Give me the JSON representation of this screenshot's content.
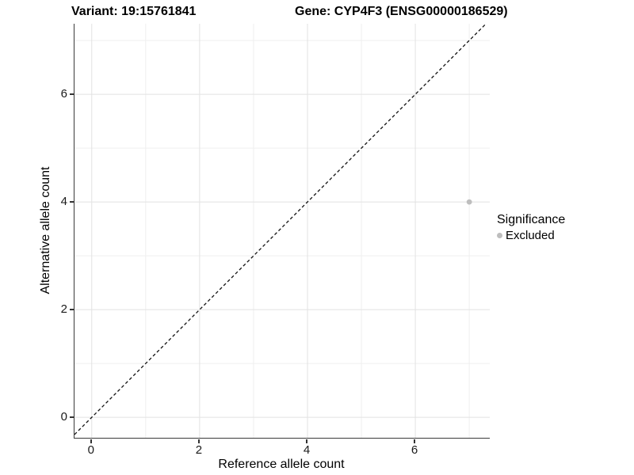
{
  "chart_data": {
    "type": "scatter",
    "title_left": "Variant: 19:15761841",
    "title_right": "Gene: CYP4F3 (ENSG00000186529)",
    "xlabel": "Reference allele count",
    "ylabel": "Alternative allele count",
    "xlim": [
      -0.32,
      7.38
    ],
    "ylim": [
      -0.38,
      7.31
    ],
    "x_major_ticks": [
      0,
      2,
      4,
      6
    ],
    "y_major_ticks": [
      0,
      2,
      4,
      6
    ],
    "x_minor_ticks": [
      1,
      3,
      5,
      7
    ],
    "y_minor_ticks": [
      1,
      3,
      5,
      7
    ],
    "grid": "major+minor",
    "legend_position": "right",
    "legend_title": "Significance",
    "series": [
      {
        "name": "Excluded",
        "color": "#bebebe",
        "points": [
          {
            "x": 7,
            "y": 4
          }
        ]
      }
    ],
    "reference_line": {
      "kind": "identity y=x",
      "style": "dashed",
      "color": "#111111"
    }
  },
  "colors": {
    "background": "#ffffff",
    "grid_major": "#e2e2e2",
    "grid_minor": "#efefef",
    "axis_line": "#3a3a3a",
    "tick_text": "#1a1a1a",
    "point": "#bebebe"
  }
}
